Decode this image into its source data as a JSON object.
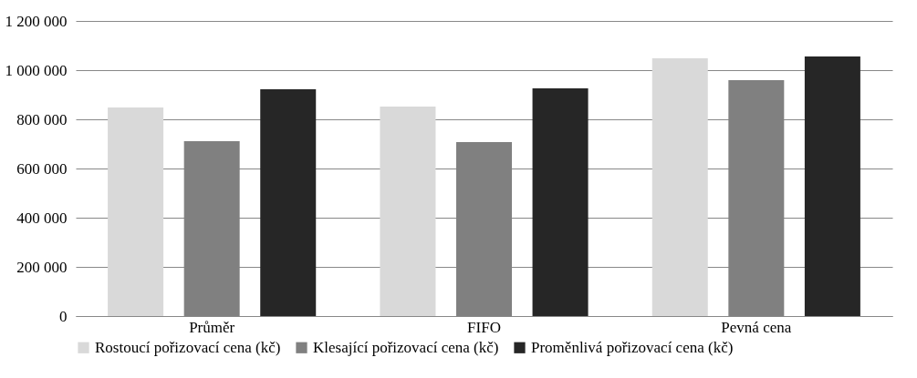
{
  "chart_data": {
    "type": "bar",
    "categories": [
      "Průměr",
      "FIFO",
      "Pevná cena"
    ],
    "series": [
      {
        "name": "Rostoucí pořizovací cena (kč)",
        "color": "#d9d9d9",
        "values": [
          848000,
          852000,
          1048000
        ]
      },
      {
        "name": "Klesající pořizovací cena (kč)",
        "color": "#808080",
        "values": [
          711000,
          707000,
          959000
        ]
      },
      {
        "name": "Proměnlivá pořizovací cena (kč)",
        "color": "#262626",
        "values": [
          922000,
          926000,
          1056000
        ]
      }
    ],
    "ylim": [
      0,
      1200000
    ],
    "yticks": [
      {
        "value": 0,
        "label": "0"
      },
      {
        "value": 200000,
        "label": "200 000"
      },
      {
        "value": 400000,
        "label": "400 000"
      },
      {
        "value": 600000,
        "label": "600 000"
      },
      {
        "value": 800000,
        "label": "800 000"
      },
      {
        "value": 1000000,
        "label": "1 000 000"
      },
      {
        "value": 1200000,
        "label": "1 200 000"
      }
    ],
    "grid": "y",
    "legend": "bottom"
  }
}
